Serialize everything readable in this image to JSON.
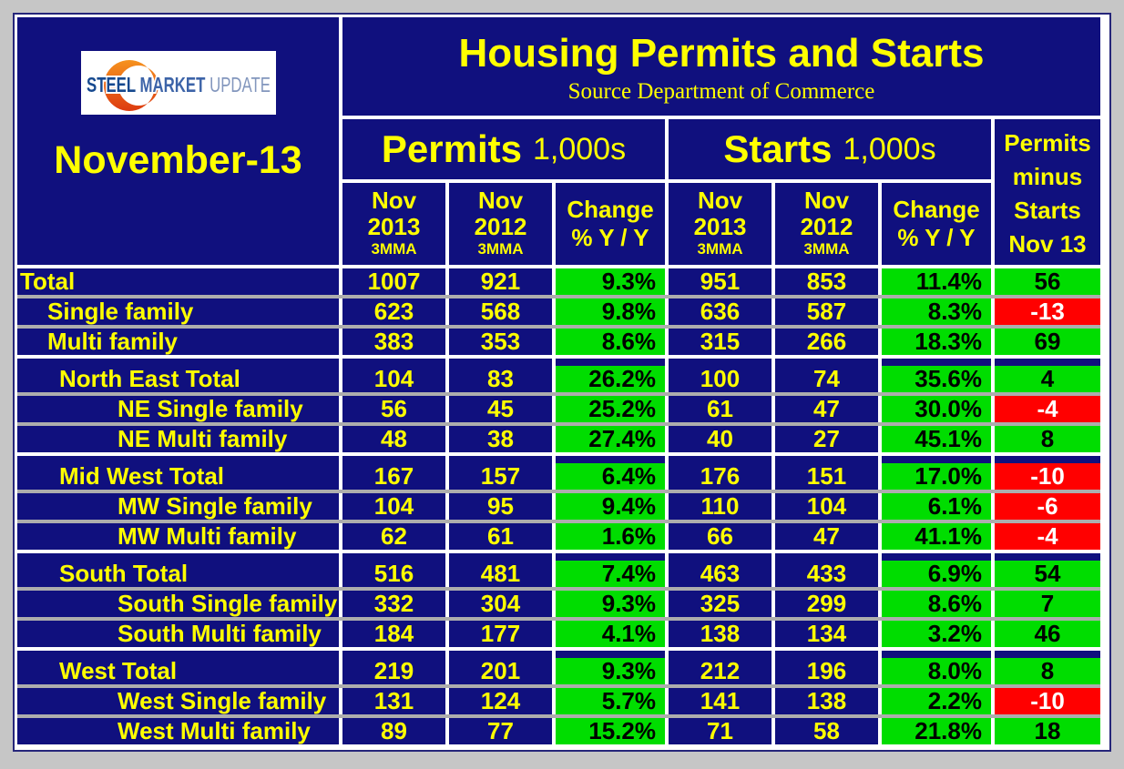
{
  "report": {
    "month": "November-13",
    "title": "Housing Permits and Starts",
    "source": "Source Department of Commerce"
  },
  "logo": {
    "word1": "STEEL",
    "word2": "MARKET",
    "word3": "UPDATE"
  },
  "header": {
    "permits_group": "Permits",
    "starts_group": "Starts",
    "unit": "1,000s",
    "sub_2013": {
      "l1": "Nov",
      "l2": "2013",
      "l3": "3MMA"
    },
    "sub_2012": {
      "l1": "Nov",
      "l2": "2012",
      "l3": "3MMA"
    },
    "change": {
      "l1": "Change",
      "l2": "% Y / Y"
    },
    "pms_lines": {
      "l1": "Permits",
      "l2": "minus",
      "l3": "Starts",
      "l4": "Nov 13"
    }
  },
  "colors": {
    "navy": "#10107e",
    "yellow": "#ffff00",
    "green": "#00dd00",
    "red": "#ff0000",
    "separator_gray": "#adadad",
    "outer_gray": "#c6c6c6",
    "sheet_white": "#ffffff",
    "logo_orange_top": "#f6921e",
    "logo_orange_bottom": "#dd3b10",
    "logo_blue_dark": "#16498f",
    "logo_blue_mid": "#3d64a8",
    "logo_blue_light": "#8296bd"
  },
  "table": {
    "columns": [
      "Permits Nov 2013 3MMA",
      "Permits Nov 2012 3MMA",
      "Permits Change % Y/Y",
      "Starts Nov 2013 3MMA",
      "Starts Nov 2012 3MMA",
      "Starts Change % Y/Y",
      "Permits minus Starts Nov 13"
    ],
    "sections": [
      {
        "rows": [
          {
            "label": "Total",
            "indent": 0,
            "cells": [
              "1007",
              "921",
              "9.3%",
              "951",
              "853",
              "11.4%"
            ],
            "pms": "56",
            "pms_state": "pos"
          },
          {
            "label": "Single family",
            "indent": 1,
            "cells": [
              "623",
              "568",
              "9.8%",
              "636",
              "587",
              "8.3%"
            ],
            "pms": "-13",
            "pms_state": "neg"
          },
          {
            "label": "Multi family",
            "indent": 1,
            "cells": [
              "383",
              "353",
              "8.6%",
              "315",
              "266",
              "18.3%"
            ],
            "pms": "69",
            "pms_state": "pos"
          }
        ]
      },
      {
        "rows": [
          {
            "label": "North East Total",
            "indent": 2,
            "cells": [
              "104",
              "83",
              "26.2%",
              "100",
              "74",
              "35.6%"
            ],
            "pms": "4",
            "pms_state": "pos"
          },
          {
            "label": "NE Single family",
            "indent": 3,
            "cells": [
              "56",
              "45",
              "25.2%",
              "61",
              "47",
              "30.0%"
            ],
            "pms": "-4",
            "pms_state": "neg"
          },
          {
            "label": "NE Multi family",
            "indent": 3,
            "cells": [
              "48",
              "38",
              "27.4%",
              "40",
              "27",
              "45.1%"
            ],
            "pms": "8",
            "pms_state": "pos"
          }
        ]
      },
      {
        "rows": [
          {
            "label": "Mid West Total",
            "indent": 2,
            "cells": [
              "167",
              "157",
              "6.4%",
              "176",
              "151",
              "17.0%"
            ],
            "pms": "-10",
            "pms_state": "neg"
          },
          {
            "label": "MW Single family",
            "indent": 3,
            "cells": [
              "104",
              "95",
              "9.4%",
              "110",
              "104",
              "6.1%"
            ],
            "pms": "-6",
            "pms_state": "neg"
          },
          {
            "label": "MW Multi family",
            "indent": 3,
            "cells": [
              "62",
              "61",
              "1.6%",
              "66",
              "47",
              "41.1%"
            ],
            "pms": "-4",
            "pms_state": "neg"
          }
        ]
      },
      {
        "rows": [
          {
            "label": "South Total",
            "indent": 2,
            "cells": [
              "516",
              "481",
              "7.4%",
              "463",
              "433",
              "6.9%"
            ],
            "pms": "54",
            "pms_state": "pos"
          },
          {
            "label": "South Single family",
            "indent": 3,
            "cells": [
              "332",
              "304",
              "9.3%",
              "325",
              "299",
              "8.6%"
            ],
            "pms": "7",
            "pms_state": "pos"
          },
          {
            "label": "South Multi family",
            "indent": 3,
            "cells": [
              "184",
              "177",
              "4.1%",
              "138",
              "134",
              "3.2%"
            ],
            "pms": "46",
            "pms_state": "pos"
          }
        ]
      },
      {
        "rows": [
          {
            "label": "West Total",
            "indent": 2,
            "cells": [
              "219",
              "201",
              "9.3%",
              "212",
              "196",
              "8.0%"
            ],
            "pms": "8",
            "pms_state": "pos"
          },
          {
            "label": "West Single family",
            "indent": 3,
            "cells": [
              "131",
              "124",
              "5.7%",
              "141",
              "138",
              "2.2%"
            ],
            "pms": "-10",
            "pms_state": "neg"
          },
          {
            "label": "West Multi family",
            "indent": 3,
            "cells": [
              "89",
              "77",
              "15.2%",
              "71",
              "58",
              "21.8%"
            ],
            "pms": "18",
            "pms_state": "pos"
          }
        ]
      }
    ]
  },
  "chart_data": {
    "type": "table",
    "title": "Housing Permits and Starts",
    "categories": [
      "Total",
      "Single family",
      "Multi family",
      "North East Total",
      "NE Single family",
      "NE Multi family",
      "Mid West Total",
      "MW Single family",
      "MW Multi family",
      "South Total",
      "South Single family",
      "South Multi family",
      "West Total",
      "West Single family",
      "West Multi family"
    ],
    "series": [
      {
        "name": "Permits Nov 2013 3MMA",
        "values": [
          1007,
          623,
          383,
          104,
          56,
          48,
          167,
          104,
          62,
          516,
          332,
          184,
          219,
          131,
          89
        ]
      },
      {
        "name": "Permits Nov 2012 3MMA",
        "values": [
          921,
          568,
          353,
          83,
          45,
          38,
          157,
          95,
          61,
          481,
          304,
          177,
          201,
          124,
          77
        ]
      },
      {
        "name": "Permits Change % Y/Y",
        "values": [
          9.3,
          9.8,
          8.6,
          26.2,
          25.2,
          27.4,
          6.4,
          9.4,
          1.6,
          7.4,
          9.3,
          4.1,
          9.3,
          5.7,
          15.2
        ]
      },
      {
        "name": "Starts Nov 2013 3MMA",
        "values": [
          951,
          636,
          315,
          100,
          61,
          40,
          176,
          110,
          66,
          463,
          325,
          138,
          212,
          141,
          71
        ]
      },
      {
        "name": "Starts Nov 2012 3MMA",
        "values": [
          853,
          587,
          266,
          74,
          47,
          27,
          151,
          104,
          47,
          433,
          299,
          134,
          196,
          138,
          58
        ]
      },
      {
        "name": "Starts Change % Y/Y",
        "values": [
          11.4,
          8.3,
          18.3,
          35.6,
          30.0,
          45.1,
          17.0,
          6.1,
          41.1,
          6.9,
          8.6,
          3.2,
          8.0,
          2.2,
          21.8
        ]
      },
      {
        "name": "Permits minus Starts Nov 13",
        "values": [
          56,
          -13,
          69,
          4,
          -4,
          8,
          -10,
          -6,
          -4,
          54,
          7,
          46,
          8,
          -10,
          18
        ]
      }
    ]
  }
}
